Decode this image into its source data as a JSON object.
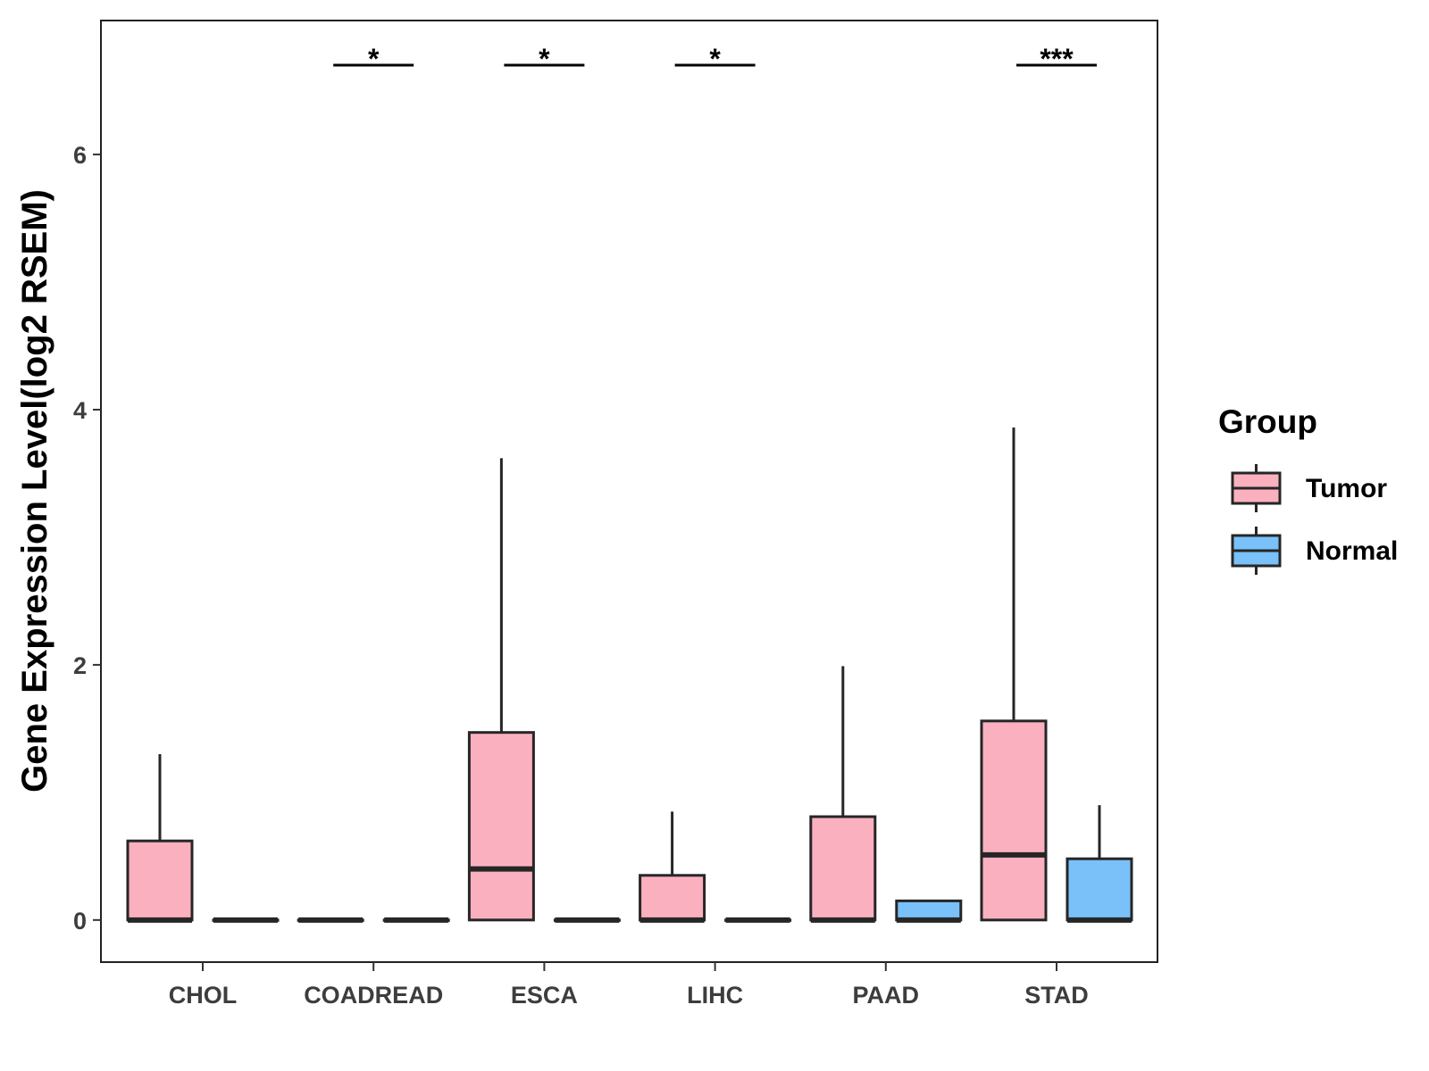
{
  "chart_data": {
    "type": "box",
    "ylabel": "Gene Expression Level(log2 RSEM)",
    "yticks": [
      0,
      2,
      4,
      6
    ],
    "ylim": [
      -0.33,
      7.05
    ],
    "categories": [
      "CHOL",
      "COADREAD",
      "ESCA",
      "LIHC",
      "PAAD",
      "STAD"
    ],
    "legend": {
      "title": "Group",
      "position": "right",
      "entries": [
        {
          "name": "Tumor",
          "color": "#fbb0c0"
        },
        {
          "name": "Normal",
          "color": "#79c1f8"
        }
      ]
    },
    "series": [
      {
        "name": "Tumor",
        "color": "#fbb0c0",
        "boxes": [
          {
            "category": "CHOL",
            "min": 0,
            "q1": 0,
            "median": 0,
            "q3": 0.62,
            "max": 1.3
          },
          {
            "category": "COADREAD",
            "min": 0,
            "q1": 0,
            "median": 0,
            "q3": 0,
            "max": 0
          },
          {
            "category": "ESCA",
            "min": 0,
            "q1": 0,
            "median": 0.4,
            "q3": 1.47,
            "max": 3.62
          },
          {
            "category": "LIHC",
            "min": 0,
            "q1": 0,
            "median": 0,
            "q3": 0.35,
            "max": 0.85
          },
          {
            "category": "PAAD",
            "min": 0,
            "q1": 0,
            "median": 0,
            "q3": 0.81,
            "max": 1.99
          },
          {
            "category": "STAD",
            "min": 0,
            "q1": 0,
            "median": 0.51,
            "q3": 1.56,
            "max": 3.86
          }
        ]
      },
      {
        "name": "Normal",
        "color": "#79c1f8",
        "boxes": [
          {
            "category": "CHOL",
            "min": 0,
            "q1": 0,
            "median": 0,
            "q3": 0,
            "max": 0
          },
          {
            "category": "COADREAD",
            "min": 0,
            "q1": 0,
            "median": 0,
            "q3": 0,
            "max": 0
          },
          {
            "category": "ESCA",
            "min": 0,
            "q1": 0,
            "median": 0,
            "q3": 0,
            "max": 0
          },
          {
            "category": "LIHC",
            "min": 0,
            "q1": 0,
            "median": 0,
            "q3": 0,
            "max": 0
          },
          {
            "category": "PAAD",
            "min": 0,
            "q1": 0,
            "median": 0,
            "q3": 0.15,
            "max": 0.15
          },
          {
            "category": "STAD",
            "min": 0,
            "q1": 0,
            "median": 0,
            "q3": 0.48,
            "max": 0.9
          }
        ]
      }
    ],
    "significance": [
      {
        "category": "COADREAD",
        "label": "*"
      },
      {
        "category": "ESCA",
        "label": "*"
      },
      {
        "category": "LIHC",
        "label": "*"
      },
      {
        "category": "STAD",
        "label": "***"
      }
    ],
    "significance_y": 6.7,
    "grid": false
  }
}
